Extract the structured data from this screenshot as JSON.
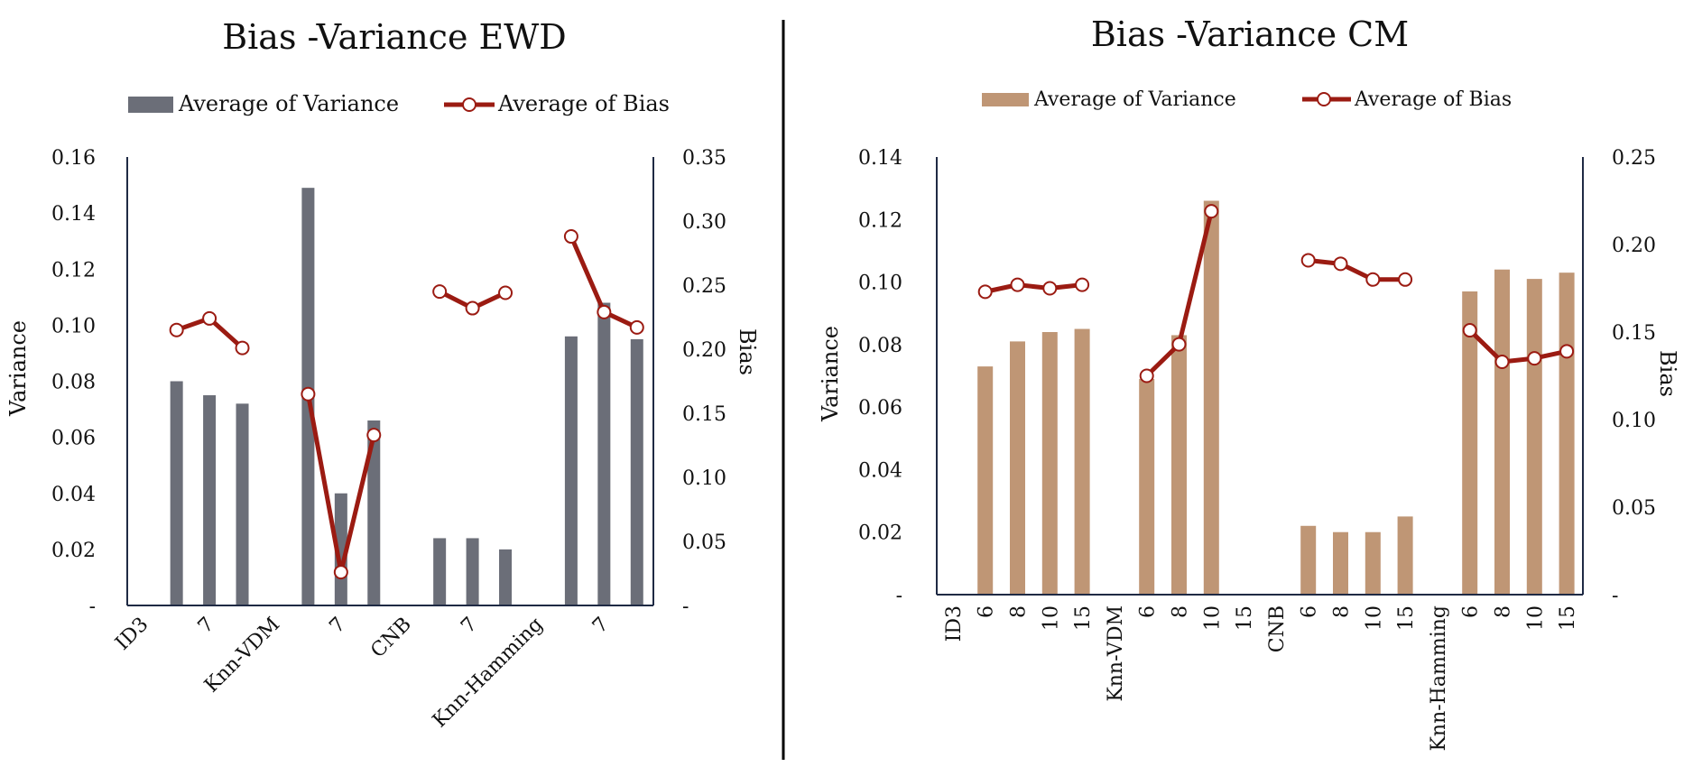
{
  "chart_data": [
    {
      "type": "bar",
      "title": "Bias -Variance EWD",
      "ylabel": "Variance",
      "y2label": "Bias",
      "ylim": [
        0,
        0.16
      ],
      "y2lim": [
        0,
        0.35
      ],
      "yticks": [
        "-",
        "0.02",
        "0.04",
        "0.06",
        "0.08",
        "0.10",
        "0.12",
        "0.14",
        "0.16"
      ],
      "y2ticks": [
        "-",
        "0.05",
        "0.10",
        "0.15",
        "0.20",
        "0.25",
        "0.30",
        "0.35"
      ],
      "xtick_labels": [
        "ID3",
        "7",
        "Knn-VDM",
        "7",
        "CNB",
        "7",
        "Knn-Hamming",
        "7"
      ],
      "colors": {
        "variance": "#6b6e78",
        "bias": "#9b1b12"
      },
      "series": [
        {
          "name": "Average of Variance",
          "kind": "bar",
          "axis": "left",
          "values": [
            null,
            0.08,
            0.075,
            0.072,
            null,
            0.149,
            0.04,
            0.066,
            null,
            0.024,
            0.024,
            0.02,
            null,
            0.096,
            0.108,
            0.095
          ]
        },
        {
          "name": "Average of Bias",
          "kind": "line",
          "axis": "right",
          "values": [
            null,
            0.215,
            0.224,
            0.201,
            null,
            0.165,
            0.026,
            0.133,
            null,
            0.245,
            0.232,
            0.244,
            null,
            0.288,
            0.229,
            0.217
          ]
        }
      ]
    },
    {
      "type": "bar",
      "title": "Bias -Variance CM",
      "ylabel": "Variance",
      "y2label": "Bias",
      "ylim": [
        0,
        0.14
      ],
      "y2lim": [
        0,
        0.25
      ],
      "yticks": [
        "-",
        "0.02",
        "0.04",
        "0.06",
        "0.08",
        "0.10",
        "0.12",
        "0.14"
      ],
      "y2ticks": [
        "-",
        "0.05",
        "0.10",
        "0.15",
        "0.20",
        "0.25"
      ],
      "categories": [
        "ID3",
        "6",
        "8",
        "10",
        "15",
        "Knn-VDM",
        "6",
        "8",
        "10",
        "15",
        "CNB",
        "6",
        "8",
        "10",
        "15",
        "Knn-Hamming",
        "6",
        "8",
        "10",
        "15"
      ],
      "colors": {
        "variance": "#bf9675",
        "bias": "#9b1b12"
      },
      "series": [
        {
          "name": "Average of Variance",
          "kind": "bar",
          "axis": "left",
          "values": [
            null,
            0.073,
            0.081,
            0.084,
            0.085,
            null,
            0.069,
            0.083,
            0.126,
            null,
            null,
            0.022,
            0.02,
            0.02,
            0.025,
            null,
            0.097,
            0.104,
            0.101,
            0.103
          ]
        },
        {
          "name": "Average of Bias",
          "kind": "line",
          "axis": "right",
          "values": [
            null,
            0.173,
            0.177,
            0.175,
            0.177,
            null,
            0.125,
            0.143,
            0.219,
            null,
            null,
            0.191,
            0.189,
            0.18,
            0.18,
            null,
            0.151,
            0.133,
            0.135,
            0.139
          ]
        }
      ]
    }
  ]
}
